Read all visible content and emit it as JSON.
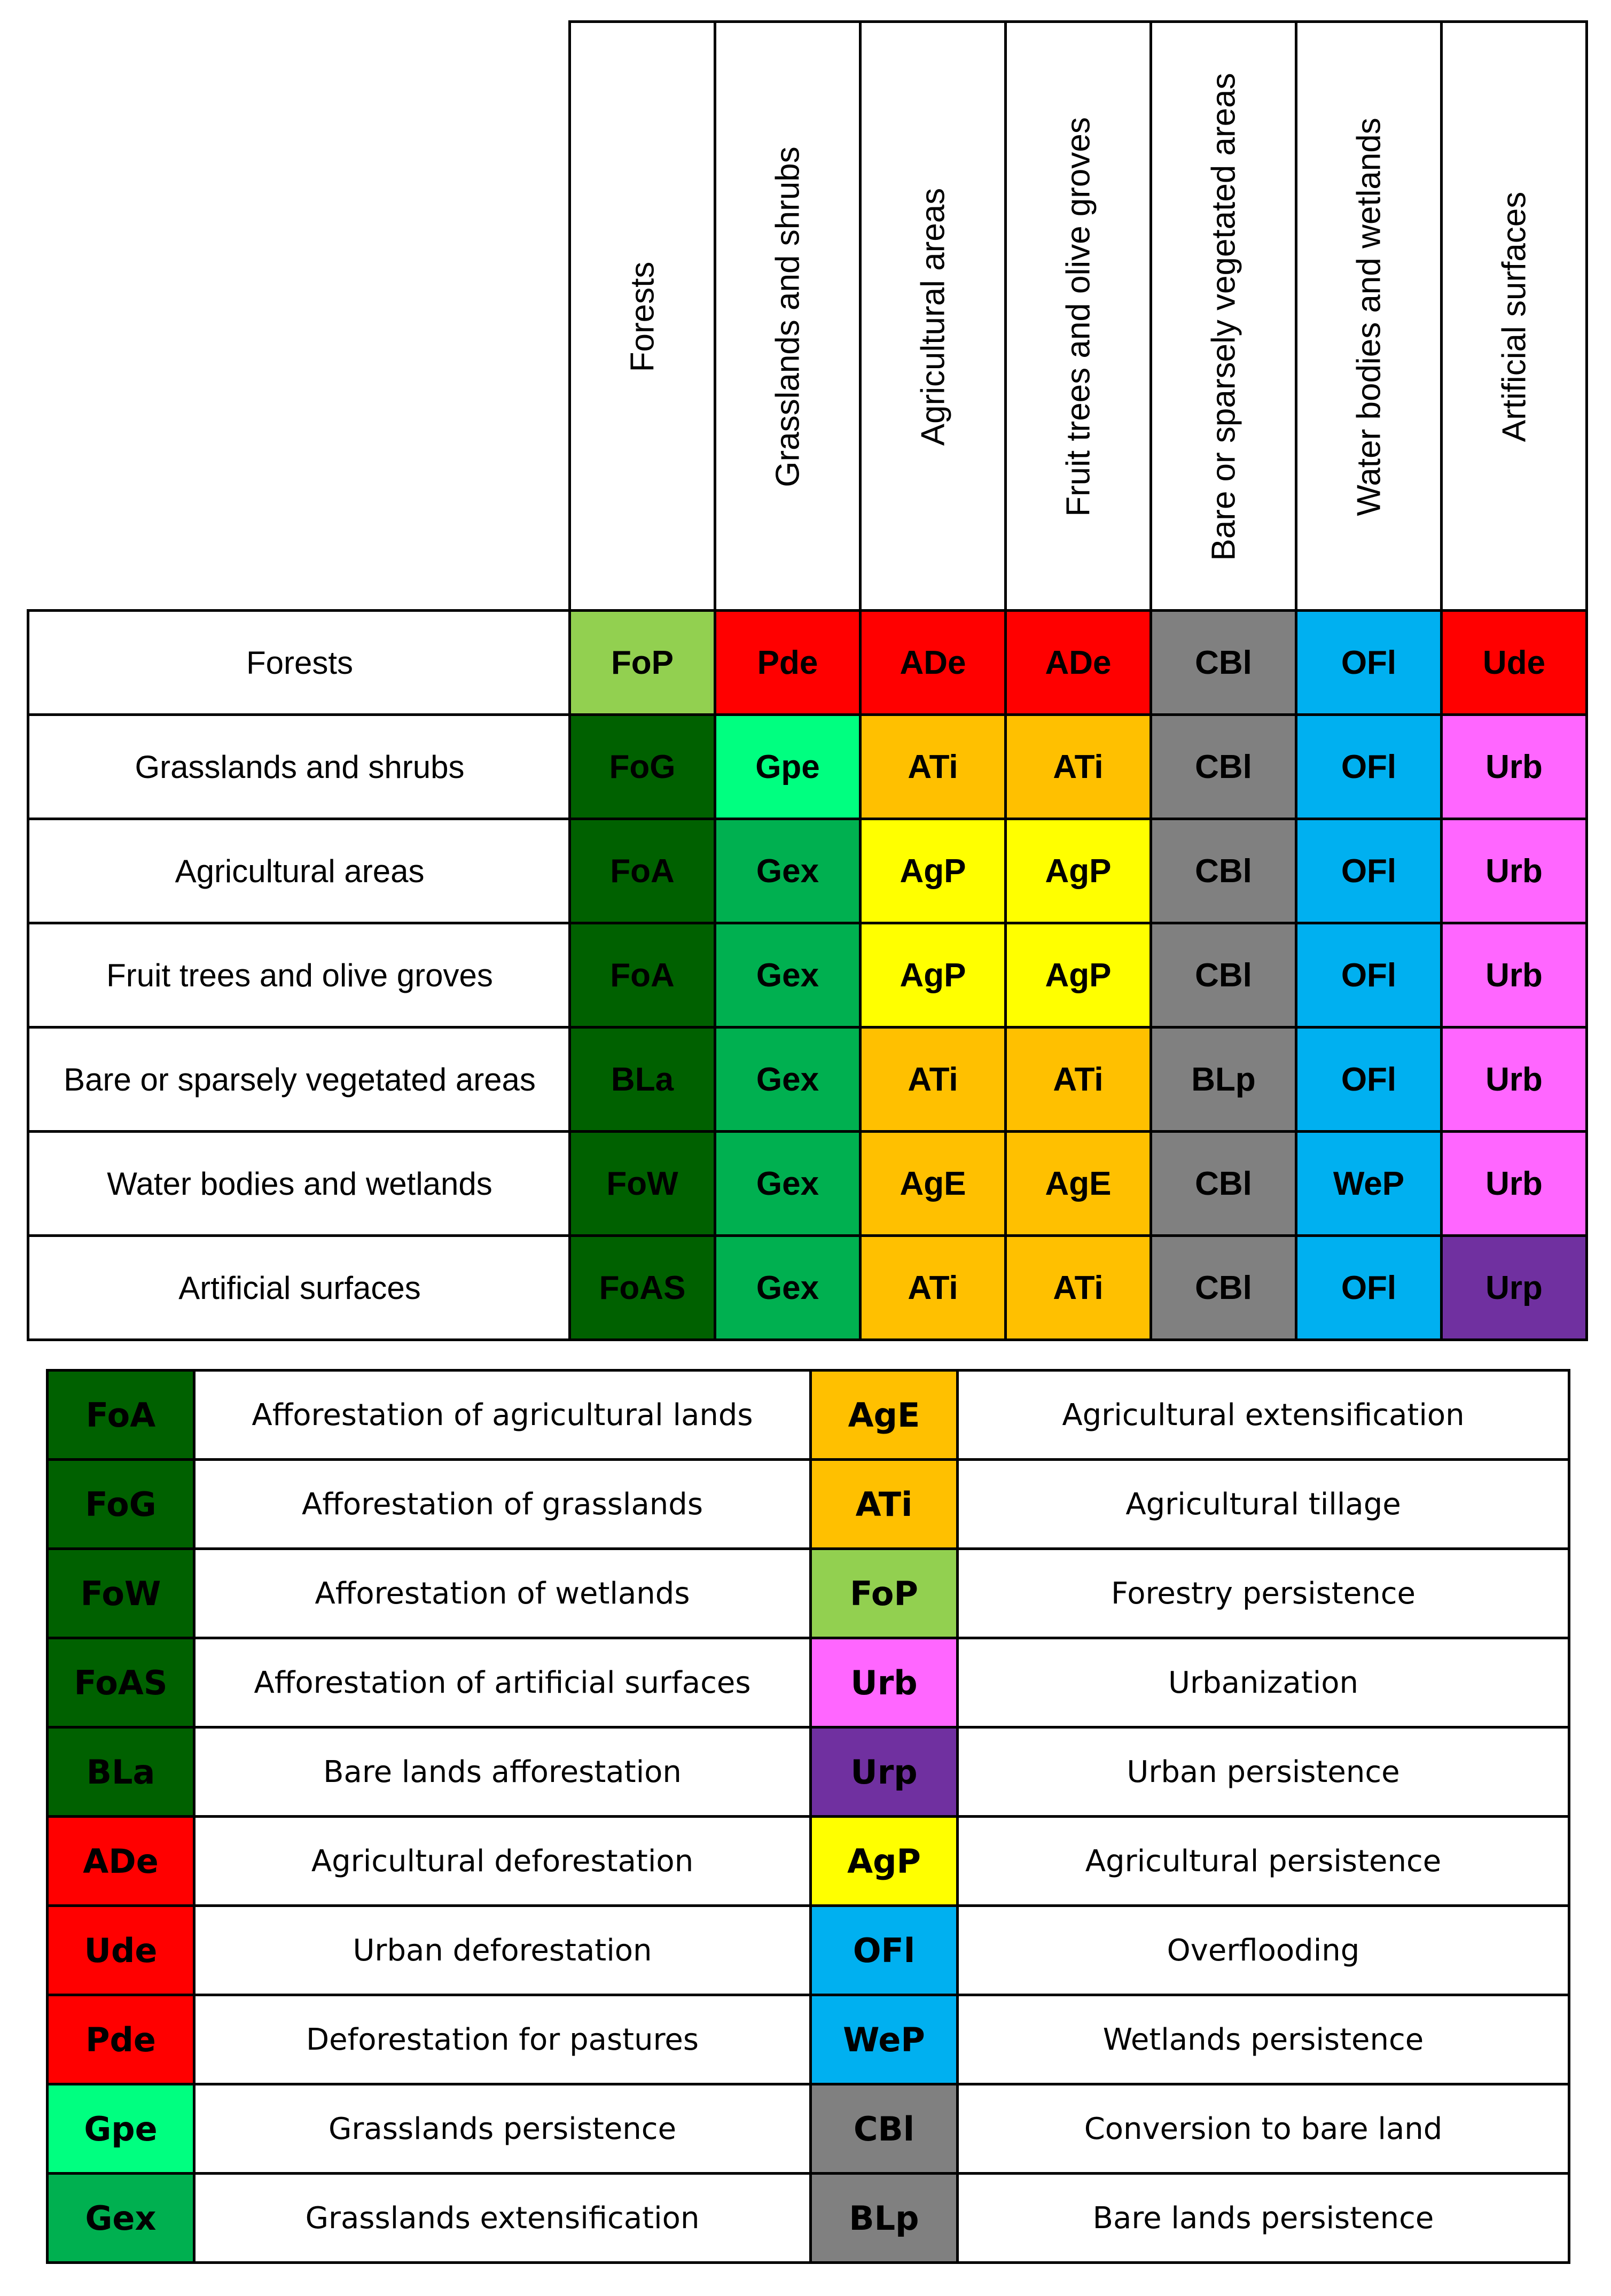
{
  "matrix": {
    "columns": [
      "Forests",
      "Grasslands and shrubs",
      "Agricultural areas",
      "Fruit trees and olive groves",
      "Bare or sparsely vegetated areas",
      "Water bodies and wetlands",
      "Artificial surfaces"
    ],
    "rows": [
      "Forests",
      "Grasslands and shrubs",
      "Agricultural areas",
      "Fruit trees and olive groves",
      "Bare or sparsely vegetated areas",
      "Water bodies and wetlands",
      "Artificial surfaces"
    ],
    "cells": [
      [
        "FoP",
        "Pde",
        "ADe",
        "ADe",
        "CBl",
        "OFl",
        "Ude"
      ],
      [
        "FoG",
        "Gpe",
        "ATi",
        "ATi",
        "CBl",
        "OFl",
        "Urb"
      ],
      [
        "FoA",
        "Gex",
        "AgP",
        "AgP",
        "CBl",
        "OFl",
        "Urb"
      ],
      [
        "FoA",
        "Gex",
        "AgP",
        "AgP",
        "CBl",
        "OFl",
        "Urb"
      ],
      [
        "BLa",
        "Gex",
        "ATi",
        "ATi",
        "BLp",
        "OFl",
        "Urb"
      ],
      [
        "FoW",
        "Gex",
        "AgE",
        "AgE",
        "CBl",
        "WeP",
        "Urb"
      ],
      [
        "FoAS",
        "Gex",
        "ATi",
        "ATi",
        "CBl",
        "OFl",
        "Urp"
      ]
    ]
  },
  "legend": {
    "left": [
      {
        "code": "FoA",
        "description": "Afforestation of agricultural lands"
      },
      {
        "code": "FoG",
        "description": "Afforestation of grasslands"
      },
      {
        "code": "FoW",
        "description": "Afforestation of wetlands"
      },
      {
        "code": "FoAS",
        "description": "Afforestation of artificial surfaces"
      },
      {
        "code": "BLa",
        "description": "Bare lands afforestation"
      },
      {
        "code": "ADe",
        "description": "Agricultural deforestation"
      },
      {
        "code": "Ude",
        "description": "Urban deforestation"
      },
      {
        "code": "Pde",
        "description": "Deforestation for pastures"
      },
      {
        "code": "Gpe",
        "description": "Grasslands persistence"
      },
      {
        "code": "Gex",
        "description": "Grasslands extensification"
      }
    ],
    "right": [
      {
        "code": "AgE",
        "description": "Agricultural extensification"
      },
      {
        "code": "ATi",
        "description": "Agricultural tillage"
      },
      {
        "code": "FoP",
        "description": "Forestry persistence"
      },
      {
        "code": "Urb",
        "description": "Urbanization"
      },
      {
        "code": "Urp",
        "description": "Urban persistence"
      },
      {
        "code": "AgP",
        "description": "Agricultural persistence"
      },
      {
        "code": "OFl",
        "description": "Overflooding"
      },
      {
        "code": "WeP",
        "description": "Wetlands persistence"
      },
      {
        "code": "CBl",
        "description": "Conversion to bare land"
      },
      {
        "code": "BLp",
        "description": "Bare lands persistence"
      }
    ]
  },
  "colors": {
    "FoA": {
      "bg": "#006100",
      "fg": "#000000"
    },
    "FoG": {
      "bg": "#006100",
      "fg": "#000000"
    },
    "FoW": {
      "bg": "#006100",
      "fg": "#000000"
    },
    "FoAS": {
      "bg": "#006100",
      "fg": "#000000"
    },
    "BLa": {
      "bg": "#006100",
      "fg": "#000000"
    },
    "ADe": {
      "bg": "#ff0000",
      "fg": "#000000"
    },
    "Ude": {
      "bg": "#ff0000",
      "fg": "#000000"
    },
    "Pde": {
      "bg": "#ff0000",
      "fg": "#000000"
    },
    "Gpe": {
      "bg": "#00ff80",
      "fg": "#000000"
    },
    "Gex": {
      "bg": "#00b050",
      "fg": "#000000"
    },
    "AgE": {
      "bg": "#ffc000",
      "fg": "#000000"
    },
    "ATi": {
      "bg": "#ffc000",
      "fg": "#000000"
    },
    "FoP": {
      "bg": "#92d050",
      "fg": "#000000"
    },
    "Urb": {
      "bg": "#ff66ff",
      "fg": "#000000"
    },
    "Urp": {
      "bg": "#7030a0",
      "fg": "#000000"
    },
    "AgP": {
      "bg": "#ffff00",
      "fg": "#000000"
    },
    "OFl": {
      "bg": "#00b0f0",
      "fg": "#000000"
    },
    "WeP": {
      "bg": "#00b0f0",
      "fg": "#000000"
    },
    "CBl": {
      "bg": "#808080",
      "fg": "#000000"
    },
    "BLp": {
      "bg": "#808080",
      "fg": "#000000"
    }
  }
}
